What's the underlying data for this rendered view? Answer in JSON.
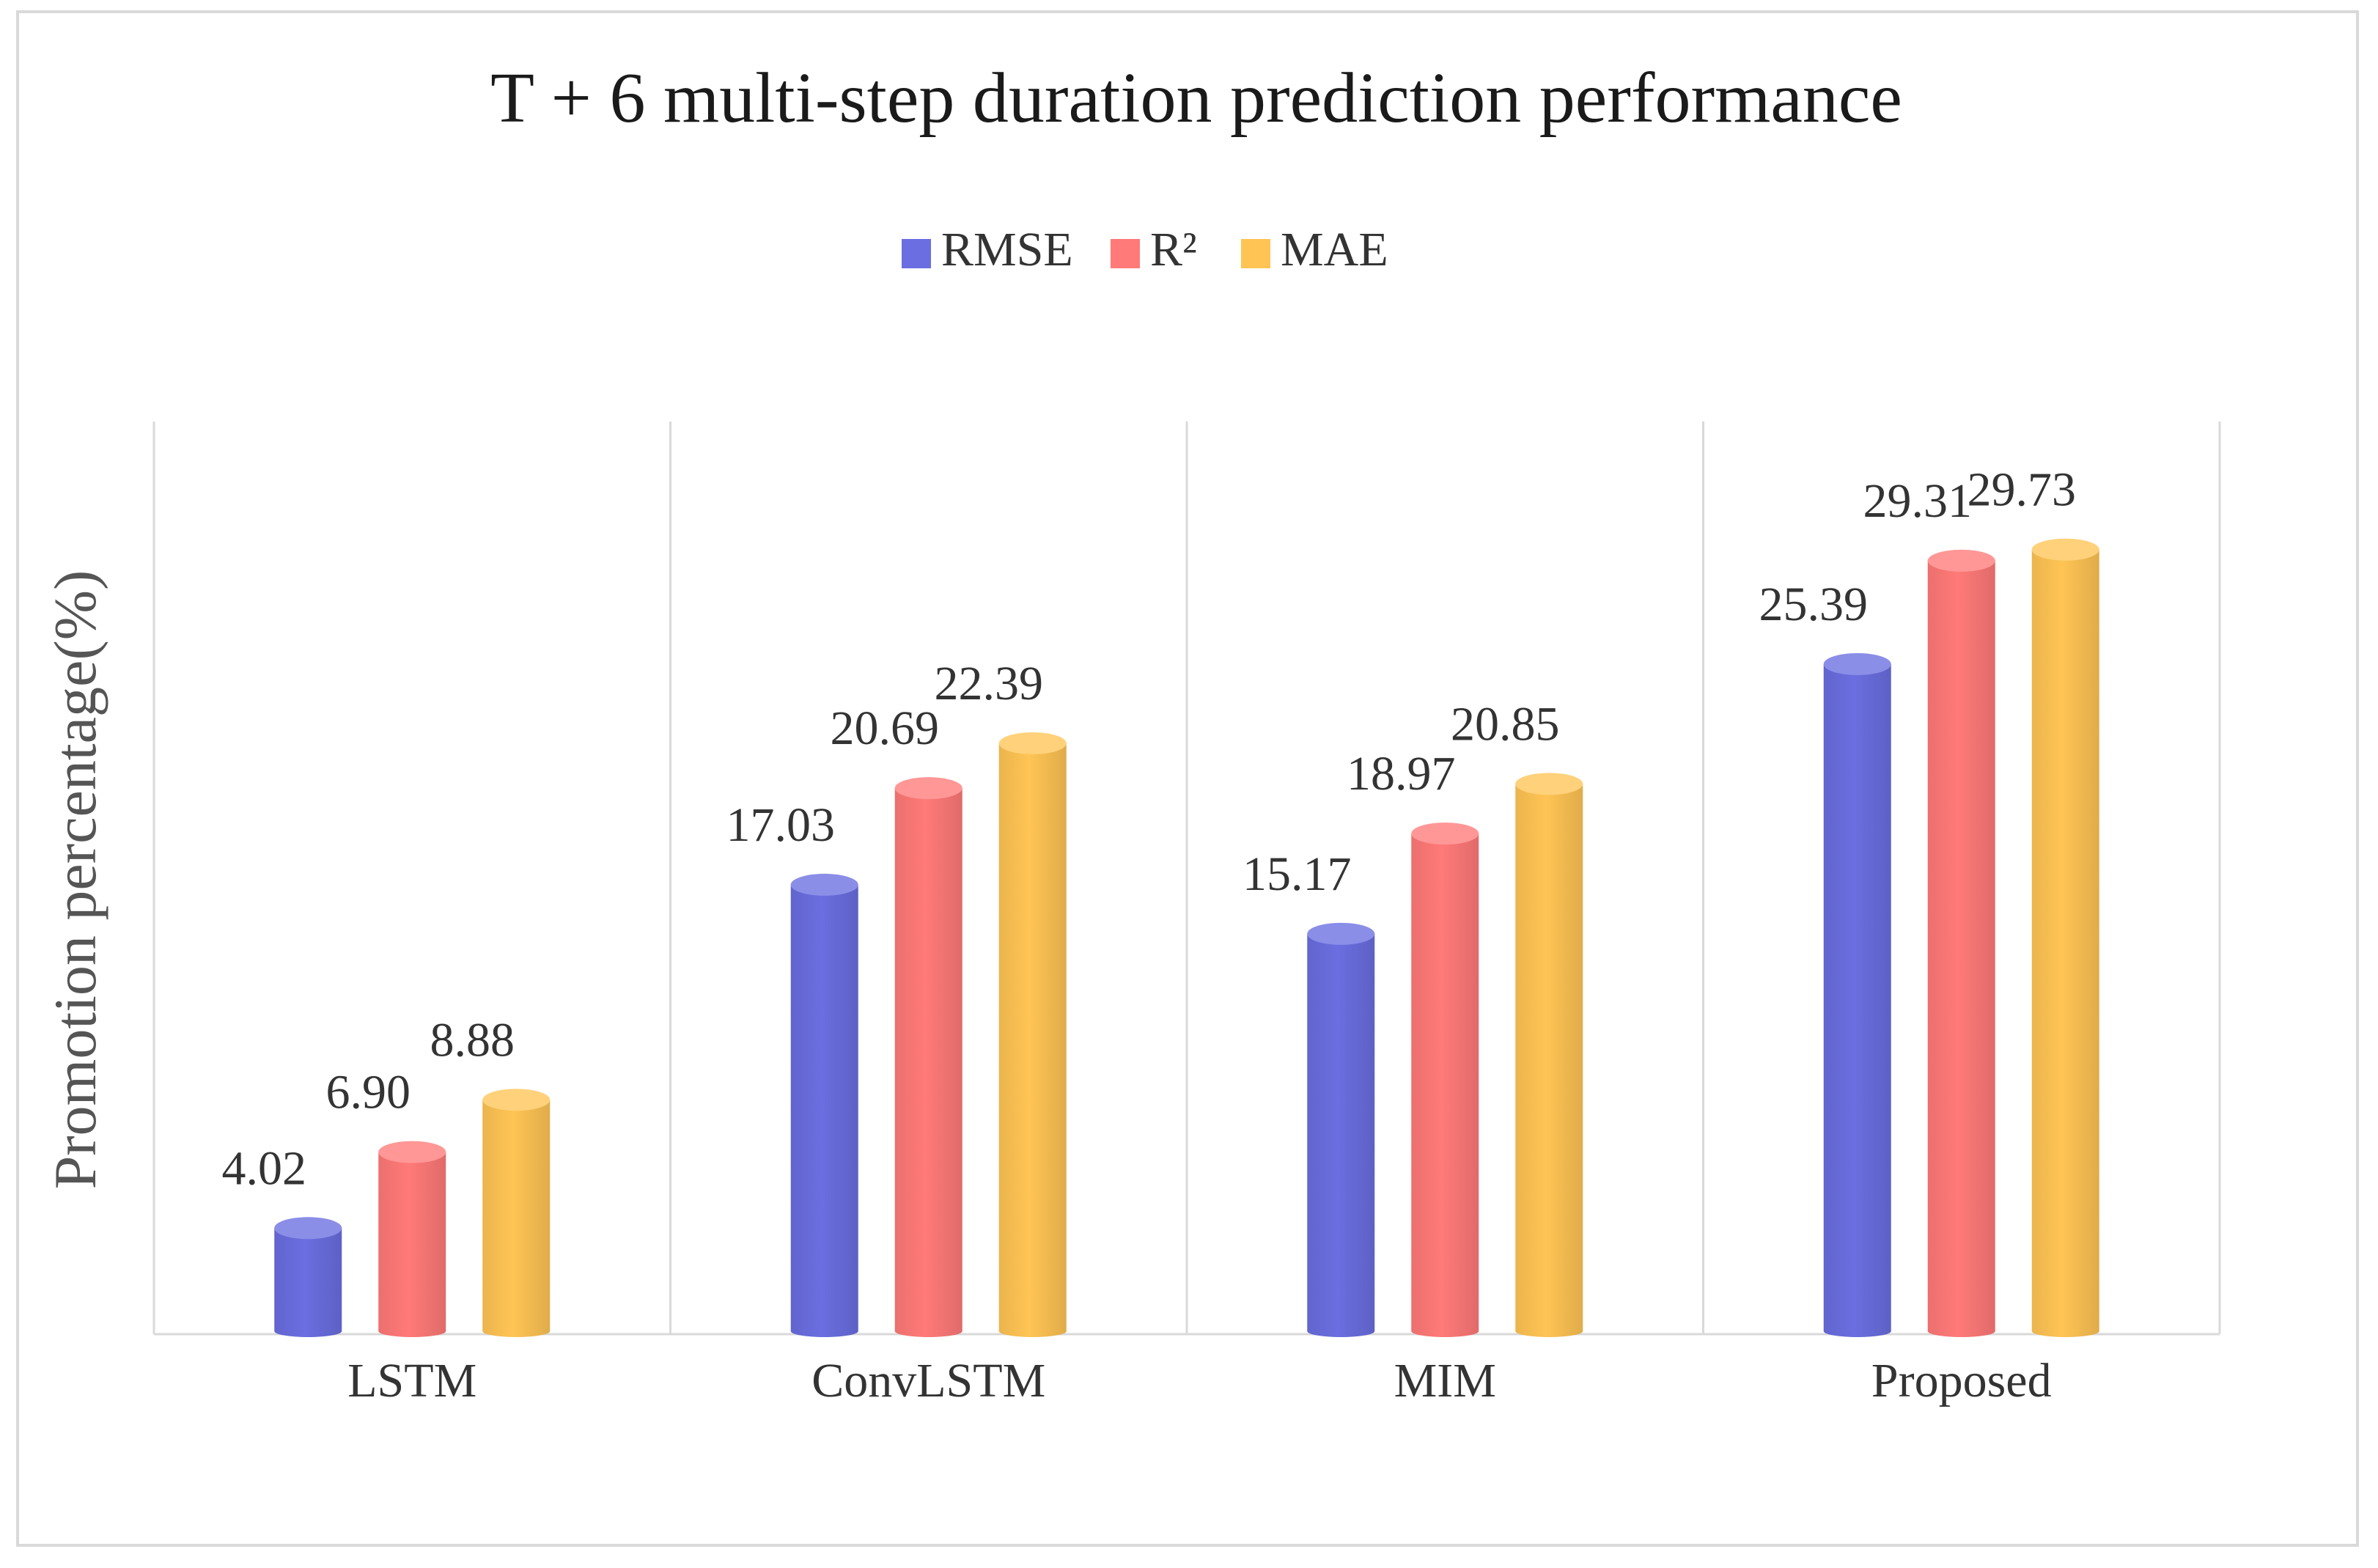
{
  "chart_data": {
    "type": "bar",
    "title": "T + 6 multi-step duration prediction performance",
    "xlabel": "",
    "ylabel": "Promotion percentage(%)",
    "categories": [
      "LSTM",
      "ConvLSTM",
      "MIM",
      "Proposed"
    ],
    "series": [
      {
        "name": "RMSE",
        "color": "#6a6ee0",
        "values": [
          4.02,
          17.03,
          15.17,
          25.39
        ]
      },
      {
        "name": "R²",
        "color": "#ff7a78",
        "values": [
          6.9,
          20.69,
          18.97,
          29.31
        ]
      },
      {
        "name": "MAE",
        "color": "#ffc454",
        "values": [
          8.88,
          22.39,
          20.85,
          29.73
        ]
      }
    ],
    "value_labels": [
      [
        "4.02",
        "6.90",
        "8.88"
      ],
      [
        "17.03",
        "20.69",
        "22.39"
      ],
      [
        "15.17",
        "18.97",
        "20.85"
      ],
      [
        "25.39",
        "29.31",
        "29.73"
      ]
    ],
    "ylim": [
      0,
      30
    ],
    "grid": "vertical-category-separators",
    "legend": "top-center"
  }
}
